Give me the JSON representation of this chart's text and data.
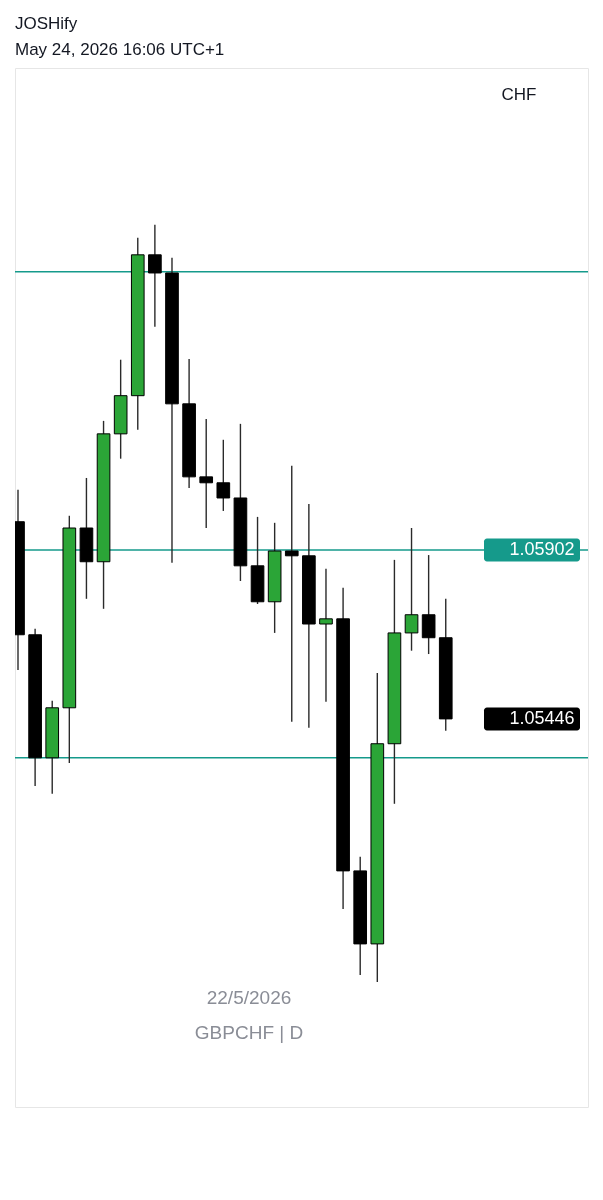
{
  "chart_data": {
    "type": "candlestick",
    "title": "JOSHify",
    "subtitle": "May 24, 2026 16:06 UTC+1",
    "categories": [
      null,
      null,
      null,
      null,
      null,
      null,
      null,
      null,
      null,
      null,
      null,
      null,
      null,
      null,
      null,
      null,
      null,
      null,
      null,
      null,
      null,
      null,
      null,
      null,
      null,
      null
    ],
    "ohlc": [
      [
        1.05978,
        1.06064,
        1.05578,
        1.05673
      ],
      [
        1.05673,
        1.05689,
        1.05265,
        1.05341
      ],
      [
        1.05341,
        1.05495,
        1.05244,
        1.05476
      ],
      [
        1.05476,
        1.05994,
        1.05327,
        1.05961
      ],
      [
        1.05961,
        1.06096,
        1.0577,
        1.0587
      ],
      [
        1.0587,
        1.0625,
        1.05743,
        1.06215
      ],
      [
        1.06215,
        1.06415,
        1.06148,
        1.06318
      ],
      [
        1.06318,
        1.06744,
        1.06226,
        1.06698
      ],
      [
        1.06698,
        1.06779,
        1.06504,
        1.06649
      ],
      [
        1.06649,
        1.0669,
        1.05867,
        1.06296
      ],
      [
        1.06296,
        1.06417,
        1.06069,
        1.06099
      ],
      [
        1.06099,
        1.06255,
        1.05961,
        1.06083
      ],
      [
        1.06083,
        1.06199,
        1.06007,
        1.06042
      ],
      [
        1.06042,
        1.06242,
        1.05818,
        1.05859
      ],
      [
        1.05859,
        1.05991,
        1.05756,
        1.05762
      ],
      [
        1.05762,
        1.05975,
        1.05678,
        1.05899
      ],
      [
        1.05899,
        1.06129,
        1.05438,
        1.05886
      ],
      [
        1.05886,
        1.06026,
        1.05422,
        1.05702
      ],
      [
        1.05702,
        1.05851,
        1.05492,
        1.05716
      ],
      [
        1.05716,
        1.058,
        1.04933,
        1.05036
      ],
      [
        1.05036,
        1.05074,
        1.04755,
        1.04839
      ],
      [
        1.04839,
        1.0557,
        1.04736,
        1.05379
      ],
      [
        1.05379,
        1.05875,
        1.05217,
        1.05678
      ],
      [
        1.05678,
        1.05961,
        1.0563,
        1.05727
      ],
      [
        1.05727,
        1.05888,
        1.05621,
        1.05665
      ],
      [
        1.05665,
        1.0577,
        1.05414,
        1.05446
      ]
    ],
    "colors": [
      "#000000",
      "#000000",
      "#2ba537",
      "#2ba537",
      "#000000",
      "#2ba537",
      "#2ba537",
      "#2ba537",
      "#000000",
      "#000000",
      "#000000",
      "#000000",
      "#000000",
      "#000000",
      "#000000",
      "#2ba537",
      "#000000",
      "#000000",
      "#2ba537",
      "#000000",
      "#000000",
      "#2ba537",
      "#2ba537",
      "#2ba537",
      "#000000",
      "#000000"
    ],
    "ylim": [
      1.04399,
      1.07202
    ],
    "yticks": [
      1.05446,
      1.05902
    ],
    "tick_labels": "y",
    "ref_lines": [
      {
        "axis": "y",
        "value": 1.06652,
        "color": "#159a8b"
      },
      {
        "axis": "y",
        "value": 1.05902,
        "color": "#159a8b"
      },
      {
        "axis": "y",
        "value": 1.05341,
        "color": "#159a8b"
      }
    ],
    "annotations": [
      "CHF",
      "22/5/2026",
      "GBPCHF | D"
    ]
  }
}
